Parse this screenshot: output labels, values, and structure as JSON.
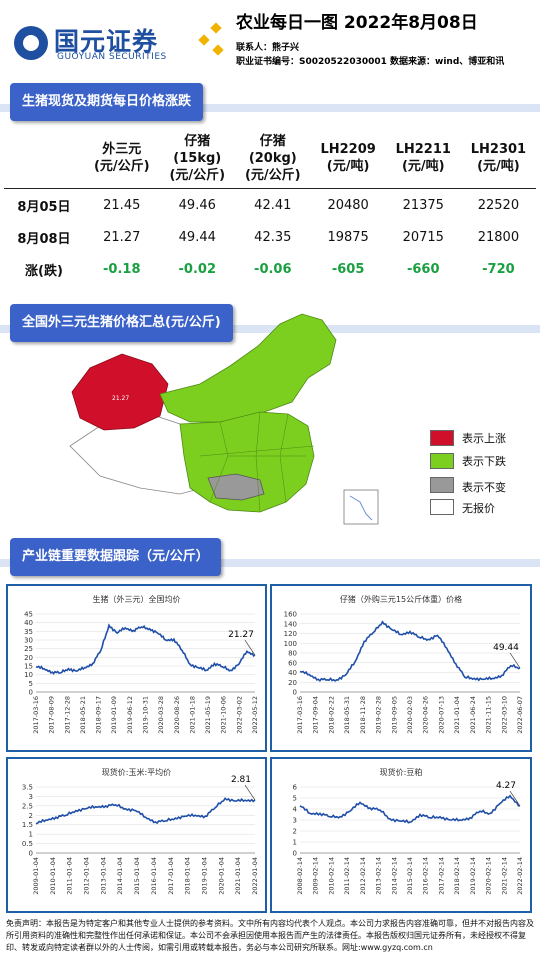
{
  "header": {
    "logo_cn": "国元证券",
    "logo_en": "GUOYUAN SECURITIES",
    "title": "农业每日一图   2022年8月08日",
    "contact": "联系人：熊子兴",
    "license": "职业证书编号：S0020522030001      数据来源：wind、博亚和讯"
  },
  "section1": {
    "title": "生猪现货及期货每日价格涨跌",
    "columns": [
      [
        "外三元",
        "(元/公斤)"
      ],
      [
        "仔猪",
        "(15kg)",
        "(元/公斤)"
      ],
      [
        "仔猪",
        "(20kg)",
        "(元/公斤)"
      ],
      [
        "LH2209",
        "(元/吨)"
      ],
      [
        "LH2211",
        "(元/吨)"
      ],
      [
        "LH2301",
        "(元/吨)"
      ]
    ],
    "rows": [
      {
        "label": "8月05日",
        "values": [
          "21.45",
          "49.46",
          "42.41",
          "20480",
          "21375",
          "22520"
        ]
      },
      {
        "label": "8月08日",
        "values": [
          "21.27",
          "49.44",
          "42.35",
          "19875",
          "20715",
          "21800"
        ]
      },
      {
        "label": "涨(跌)",
        "values": [
          "-0.18",
          "-0.02",
          "-0.06",
          "-605",
          "-660",
          "-720"
        ]
      }
    ]
  },
  "section2": {
    "title": "全国外三元生猪价格汇总(元/公斤)",
    "map_value_label": "21.27",
    "legend": [
      {
        "label": "表示上涨",
        "color": "#d0102a"
      },
      {
        "label": "表示下跌",
        "color": "#7ccf1e"
      },
      {
        "label": "表示不变",
        "color": "#999999"
      },
      {
        "label": "无报价",
        "color": "#ffffff"
      }
    ]
  },
  "section3": {
    "title": "产业链重要数据跟踪（元/公斤）"
  },
  "chart_data": [
    {
      "type": "line",
      "title": "生猪（外三元）全国均价",
      "ylim": [
        0,
        45
      ],
      "yticks": [
        0,
        5,
        10,
        15,
        20,
        25,
        30,
        35,
        40,
        45
      ],
      "xticks": [
        "2017-03-16",
        "2017-08-09",
        "2017-12-28",
        "2018-05-21",
        "2018-09-17",
        "2019-01-09",
        "2019-06-12",
        "2019-10-31",
        "2020-03-28",
        "2020-08-26",
        "2021-01-18",
        "2021-05-19",
        "2021-10-06",
        "2022-03-02",
        "2022-05-12"
      ],
      "x": [
        "2017-03",
        "2017-09",
        "2018-03",
        "2018-06",
        "2018-09",
        "2019-01",
        "2019-03",
        "2019-06",
        "2019-08",
        "2019-10",
        "2019-12",
        "2020-02",
        "2020-04",
        "2020-06",
        "2020-08",
        "2020-10",
        "2020-12",
        "2021-02",
        "2021-04",
        "2021-06",
        "2021-08",
        "2021-10",
        "2021-12",
        "2022-02",
        "2022-04",
        "2022-06",
        "2022-07",
        "2022-08"
      ],
      "values": [
        14.5,
        13.5,
        11.5,
        11.0,
        13.5,
        12.0,
        14.0,
        16.5,
        24.0,
        38.5,
        34.0,
        37.0,
        35.5,
        37.5,
        36.5,
        34.0,
        30.0,
        30.5,
        24.0,
        16.0,
        14.0,
        12.5,
        16.5,
        14.5,
        12.5,
        16.0,
        23.5,
        21.27
      ],
      "annotation": "21.27"
    },
    {
      "type": "line",
      "title": "仔猪（外购三元15公斤体重）价格",
      "ylim": [
        0,
        160
      ],
      "yticks": [
        0,
        20,
        40,
        60,
        80,
        100,
        120,
        140,
        160
      ],
      "xticks": [
        "2017-03-16",
        "2017-09-04",
        "2018-02-22",
        "2018-05-31",
        "2018-11-28",
        "2019-02-28",
        "2019-09-05",
        "2020-02-03",
        "2020-04-26",
        "2020-07-13",
        "2021-01-04",
        "2021-06-24",
        "2021-11-15",
        "2022-03-10",
        "2022-06-07"
      ],
      "x": [
        "2017-03",
        "2017-09",
        "2018-03",
        "2018-09",
        "2019-01",
        "2019-04",
        "2019-07",
        "2019-10",
        "2020-01",
        "2020-03",
        "2020-05",
        "2020-07",
        "2020-09",
        "2020-11",
        "2021-01",
        "2021-03",
        "2021-05",
        "2021-07",
        "2021-09",
        "2021-11",
        "2022-01",
        "2022-03",
        "2022-05",
        "2022-07",
        "2022-08"
      ],
      "values": [
        42.0,
        36.0,
        26.0,
        25.0,
        25.0,
        35.0,
        62.0,
        104.0,
        122.0,
        144.0,
        128.0,
        118.0,
        124.0,
        112.0,
        108.0,
        116.0,
        90.0,
        58.0,
        30.0,
        28.0,
        26.0,
        28.0,
        34.0,
        54.0,
        49.44
      ],
      "annotation": "49.44"
    },
    {
      "type": "line",
      "title": "现货价:玉米:平均价",
      "ylim": [
        0,
        3.5
      ],
      "yticks": [
        0,
        0.5,
        1,
        1.5,
        2,
        2.5,
        3,
        3.5
      ],
      "xticks": [
        "2009-01-04",
        "2010-01-04",
        "2011-01-04",
        "2012-01-04",
        "2013-01-04",
        "2014-01-04",
        "2015-01-04",
        "2016-01-04",
        "2017-01-04",
        "2018-01-04",
        "2019-01-04",
        "2020-01-04",
        "2021-01-04",
        "2022-01-04"
      ],
      "x": [
        "2009",
        "2009.5",
        "2010",
        "2010.5",
        "2011",
        "2012",
        "2013",
        "2014",
        "2014.5",
        "2015",
        "2015.5",
        "2016",
        "2016.5",
        "2017",
        "2018",
        "2019",
        "2019.5",
        "2020",
        "2020.5",
        "2021",
        "2021.5",
        "2022",
        "2022.5"
      ],
      "values": [
        1.55,
        1.75,
        1.9,
        2.0,
        2.25,
        2.35,
        2.45,
        2.5,
        2.55,
        2.35,
        2.25,
        1.9,
        1.65,
        1.7,
        1.85,
        1.95,
        2.0,
        1.95,
        2.4,
        2.9,
        2.75,
        2.8,
        2.81
      ],
      "annotation": "2.81"
    },
    {
      "type": "line",
      "title": "现货价:豆粕",
      "ylim": [
        0,
        6
      ],
      "yticks": [
        0,
        1,
        2,
        3,
        4,
        5,
        6
      ],
      "xticks": [
        "2008-02-14",
        "2009-02-14",
        "2010-02-14",
        "2011-02-14",
        "2012-02-14",
        "2013-02-14",
        "2014-02-14",
        "2015-02-14",
        "2016-02-14",
        "2017-02-14",
        "2018-02-14",
        "2019-02-14",
        "2020-02-14",
        "2021-02-14",
        "2022-02-14"
      ],
      "x": [
        "2008",
        "2008.6",
        "2009",
        "2010",
        "2011",
        "2012",
        "2012.7",
        "2013.5",
        "2014",
        "2015",
        "2015.5",
        "2016",
        "2016.5",
        "2017",
        "2018",
        "2019",
        "2020",
        "2020.5",
        "2021",
        "2021.5",
        "2022",
        "2022.3",
        "2022.6"
      ],
      "values": [
        4.3,
        3.6,
        3.6,
        3.3,
        3.3,
        3.8,
        4.6,
        4.1,
        3.9,
        3.1,
        2.9,
        2.8,
        3.5,
        3.2,
        3.3,
        3.0,
        3.0,
        3.2,
        3.8,
        3.6,
        4.5,
        5.2,
        4.27
      ],
      "annotation": "4.27"
    }
  ],
  "footer": {
    "disclaimer": "免责声明：本报告是为特定客户和其他专业人士提供的参考资料。文中所有内容均代表个人观点。本公司力求报告内容准确可靠，但并不对报告内容及所引用资料的准确性和完整性作出任何承诺和保证。本公司不会承担因使用本报告而产生的法律责任。本报告版权归国元证券所有，未经授权不得复印、转发或向特定读者群以外的人士传阅，如需引用或转载本报告，务必与本公司研究所联系。网址:www.gyzq.com.cn"
  }
}
